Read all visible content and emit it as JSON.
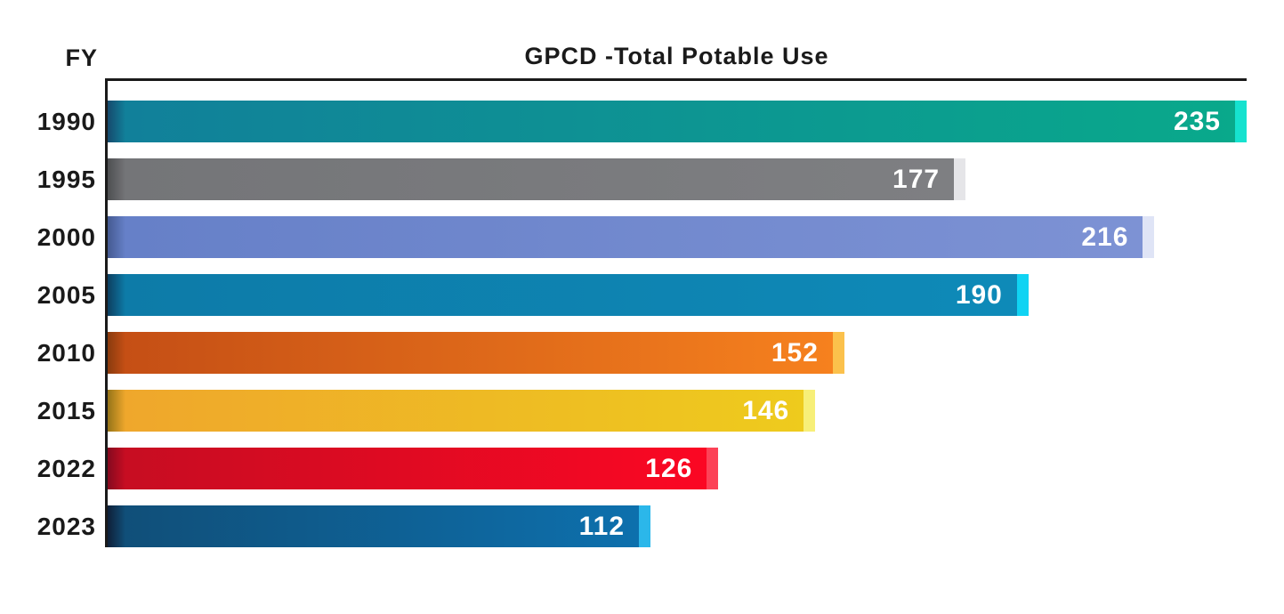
{
  "header": {
    "y_axis_label": "FY",
    "title": "GPCD -Total Potable Use"
  },
  "chart_data": {
    "type": "bar",
    "orientation": "horizontal",
    "title": "GPCD -Total Potable Use",
    "ylabel": "FY",
    "xlabel": "",
    "xlim": [
      0,
      235
    ],
    "grid": false,
    "legend": false,
    "value_labels": "inside-bar-end, white, bold",
    "categories": [
      "1990",
      "1995",
      "2000",
      "2005",
      "2010",
      "2015",
      "2022",
      "2023"
    ],
    "values": [
      235,
      177,
      216,
      190,
      152,
      146,
      126,
      112
    ],
    "axis_color": "#1a1a1a",
    "bars": [
      {
        "year": "1990",
        "value": 235,
        "gradient": [
          "#164a6d",
          "#11809a",
          "#09a98b"
        ],
        "cap_color": "#16e2cf"
      },
      {
        "year": "1995",
        "value": 177,
        "gradient": [
          "#4e4f51",
          "#747578",
          "#7e7f82"
        ],
        "cap_color": "#e5e5e8"
      },
      {
        "year": "2000",
        "value": 216,
        "gradient": [
          "#455a91",
          "#6680c8",
          "#7d92d4"
        ],
        "cap_color": "#dfe4f6"
      },
      {
        "year": "2005",
        "value": 190,
        "gradient": [
          "#0d3f60",
          "#0d7ba8",
          "#0e8ab8"
        ],
        "cap_color": "#10d3f3"
      },
      {
        "year": "2010",
        "value": 152,
        "gradient": [
          "#8a3b0e",
          "#c54f15",
          "#f6811e"
        ],
        "cap_color": "#fbc14c"
      },
      {
        "year": "2015",
        "value": 146,
        "gradient": [
          "#957419",
          "#efa72c",
          "#eecb1d"
        ],
        "cap_color": "#f7ef78"
      },
      {
        "year": "2022",
        "value": 126,
        "gradient": [
          "#850a1f",
          "#c70d22",
          "#fb0723"
        ],
        "cap_color": "#fc4257"
      },
      {
        "year": "2023",
        "value": 112,
        "gradient": [
          "#0f2038",
          "#104f79",
          "#0d70ad"
        ],
        "cap_color": "#2bb7ea"
      }
    ]
  }
}
